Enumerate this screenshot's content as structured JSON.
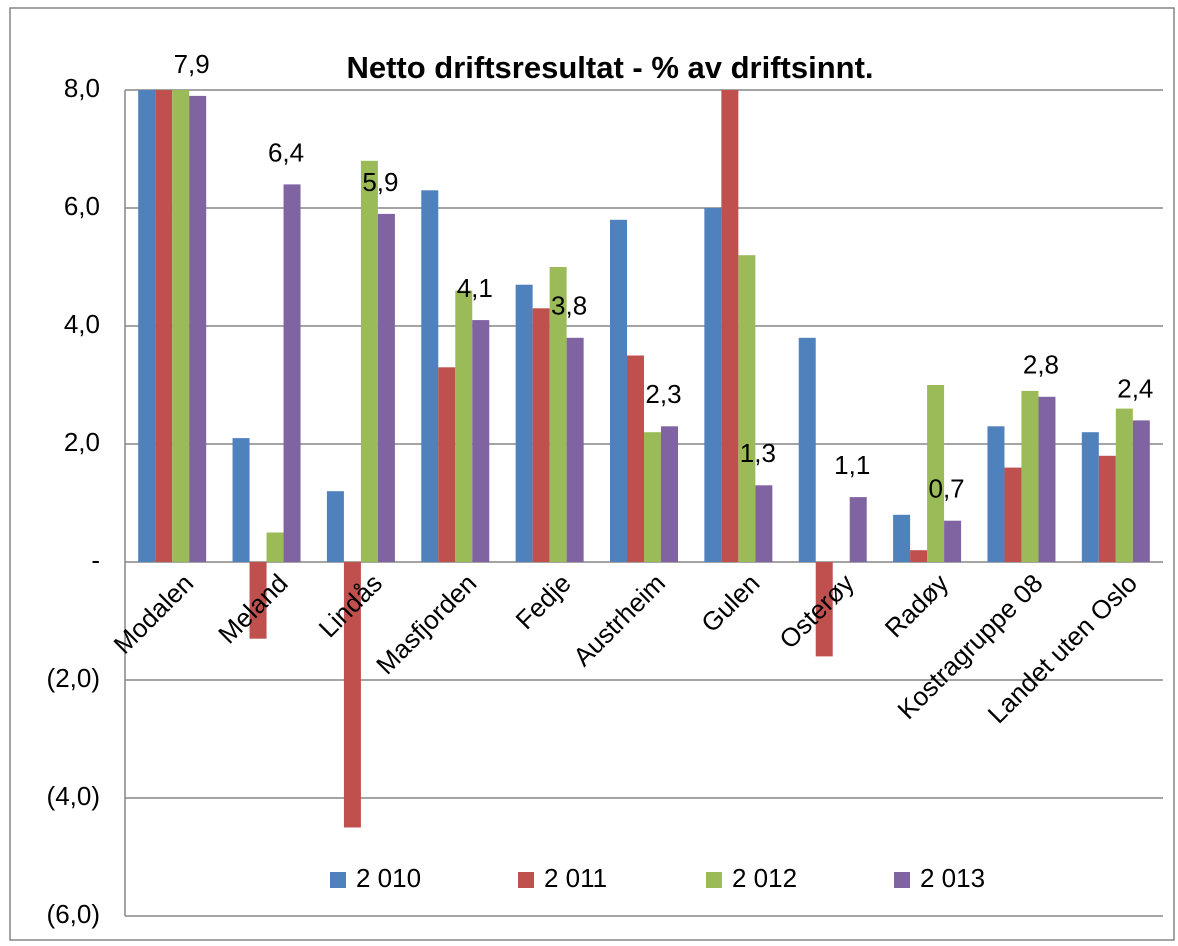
{
  "chart_data": {
    "type": "bar",
    "title": "Netto driftsresultat - % av driftsinnt.",
    "categories": [
      "Modalen",
      "Meland",
      "Lindås",
      "Masfjorden",
      "Fedje",
      "Austrheim",
      "Gulen",
      "Osterøy",
      "Radøy",
      "Kostragruppe 08",
      "Landet uten Oslo"
    ],
    "series": [
      {
        "name": "2 010",
        "color": "#4f81bd",
        "values": [
          8.0,
          2.1,
          1.2,
          6.3,
          4.7,
          5.8,
          6.0,
          3.8,
          0.8,
          2.3,
          2.2
        ]
      },
      {
        "name": "2 011",
        "color": "#c0504d",
        "values": [
          8.0,
          -1.3,
          -4.5,
          3.3,
          4.3,
          3.5,
          8.0,
          -1.6,
          0.2,
          1.6,
          1.8
        ]
      },
      {
        "name": "2 012",
        "color": "#9bbb59",
        "values": [
          8.0,
          0.5,
          6.8,
          4.6,
          5.0,
          2.2,
          5.2,
          0,
          3.0,
          2.9,
          2.6
        ]
      },
      {
        "name": "2 013",
        "color": "#8064a2",
        "values": [
          7.9,
          6.4,
          5.9,
          4.1,
          3.8,
          2.3,
          1.3,
          1.1,
          0.7,
          2.8,
          2.4
        ],
        "value_labels": [
          "7,9",
          "6,4",
          "5,9",
          "4,1",
          "3,8",
          "2,3",
          "1,3",
          "1,1",
          "0,7",
          "2,8",
          "2,4"
        ]
      }
    ],
    "ylim": [
      -6,
      8
    ],
    "yticks": [
      {
        "value": -6,
        "label": "(6,0)"
      },
      {
        "value": -4,
        "label": "(4,0)"
      },
      {
        "value": -2,
        "label": "(2,0)"
      },
      {
        "value": 0,
        "label": "-"
      },
      {
        "value": 2,
        "label": "2,0"
      },
      {
        "value": 4,
        "label": "4,0"
      },
      {
        "value": 6,
        "label": "6,0"
      },
      {
        "value": 8,
        "label": "8,0"
      }
    ],
    "grid": true,
    "legend": "bottom"
  }
}
